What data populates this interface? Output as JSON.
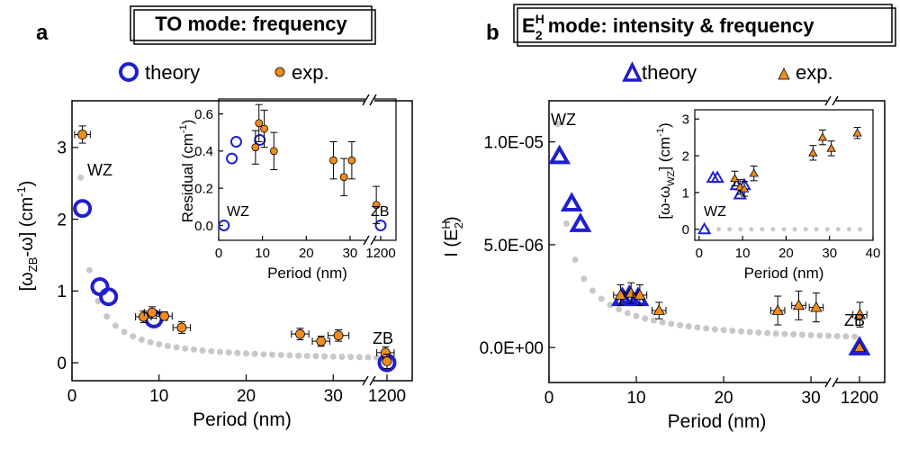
{
  "panels": [
    {
      "panel_label": "a",
      "title_main": "TO mode: frequency",
      "title_sub": "",
      "title_super": "",
      "title_rest": "",
      "legend": {
        "theory": "theory",
        "exp": "exp."
      },
      "region_labels": [
        "WZ",
        "ZB"
      ],
      "inset_region_labels": [
        "WZ",
        "ZB"
      ],
      "chart_data": {
        "type": "scatter",
        "xlabel": "Period (nm)",
        "ylabel": "[ωZB-ω] (cm-1)",
        "xlim": [
          0,
          37
        ],
        "x_break": {
          "after": 35,
          "label": "1200"
        },
        "ylim": [
          -0.25,
          3.65
        ],
        "x_ticks": [
          0,
          10,
          20,
          30
        ],
        "y_ticks": [
          0,
          1,
          2,
          3
        ],
        "y_ticklabels": [
          "0",
          "1",
          "2",
          "3"
        ],
        "series": [
          {
            "name": "theory",
            "marker": "open-circle",
            "color": "#1f1fd0",
            "points": [
              [
                1.2,
                2.15
              ],
              [
                3.2,
                1.06
              ],
              [
                4.2,
                0.92
              ],
              [
                9.4,
                0.61
              ],
              [
                1200,
                0.0
              ]
            ]
          },
          {
            "name": "exp.",
            "marker": "filled-circle",
            "color": "#f08c1e",
            "points": [
              {
                "x": 1.2,
                "y": 3.18,
                "xerr": 0.9,
                "yerr": 0.12
              },
              {
                "x": 8.2,
                "y": 0.64,
                "xerr": 0.9,
                "yerr": 0.08
              },
              {
                "x": 9.2,
                "y": 0.7,
                "xerr": 0.9,
                "yerr": 0.08
              },
              {
                "x": 10.6,
                "y": 0.65,
                "xerr": 0.9,
                "yerr": 0.06
              },
              {
                "x": 12.6,
                "y": 0.49,
                "xerr": 1.0,
                "yerr": 0.08
              },
              {
                "x": 26.2,
                "y": 0.4,
                "xerr": 1.0,
                "yerr": 0.08
              },
              {
                "x": 28.6,
                "y": 0.3,
                "xerr": 1.0,
                "yerr": 0.07
              },
              {
                "x": 30.6,
                "y": 0.38,
                "xerr": 1.2,
                "yerr": 0.08
              },
              {
                "x": 36.0,
                "y": 0.14,
                "xerr": 1.0,
                "yerr": 0.08
              },
              {
                "x": 1200,
                "y": 0.02,
                "xerr": 0,
                "yerr": 0.1
              }
            ]
          }
        ],
        "guide_curve": {
          "color": "#c8c8c8",
          "style": "dotted"
        }
      },
      "inset": {
        "chart_data": {
          "type": "scatter",
          "xlabel": "Period (nm)",
          "ylabel": "Residual (cm-1)",
          "xlim": [
            0,
            37
          ],
          "x_break": {
            "after": 35,
            "label": "1200"
          },
          "ylim": [
            -0.08,
            0.68
          ],
          "x_ticks": [
            0,
            10,
            20,
            30
          ],
          "y_ticks": [
            0.0,
            0.2,
            0.4,
            0.6
          ],
          "y_ticklabels": [
            "0.0",
            "0.2",
            "0.4",
            "0.6"
          ],
          "series": [
            {
              "name": "theory",
              "marker": "open-circle",
              "color": "#1f1fd0",
              "points": [
                [
                  1.2,
                  0.0
                ],
                [
                  3.0,
                  0.36
                ],
                [
                  4.0,
                  0.45
                ],
                [
                  9.4,
                  0.46
                ],
                [
                  1200,
                  0.0
                ]
              ]
            },
            {
              "name": "exp.",
              "marker": "filled-circle",
              "color": "#f08c1e",
              "points": [
                {
                  "x": 8.4,
                  "y": 0.42,
                  "yerr": 0.09
                },
                {
                  "x": 9.2,
                  "y": 0.55,
                  "yerr": 0.1
                },
                {
                  "x": 10.4,
                  "y": 0.52,
                  "yerr": 0.1
                },
                {
                  "x": 12.6,
                  "y": 0.4,
                  "yerr": 0.1
                },
                {
                  "x": 26.2,
                  "y": 0.35,
                  "yerr": 0.1
                },
                {
                  "x": 28.6,
                  "y": 0.26,
                  "yerr": 0.1
                },
                {
                  "x": 30.4,
                  "y": 0.35,
                  "yerr": 0.1
                },
                {
                  "x": 36.0,
                  "y": 0.11,
                  "yerr": 0.1
                }
              ]
            }
          ]
        }
      }
    },
    {
      "panel_label": "b",
      "title_main": "E",
      "title_sub": "2",
      "title_super": "H",
      "title_rest": " mode: intensity & frequency",
      "legend": {
        "theory": "theory",
        "exp": "exp."
      },
      "region_labels": [
        "WZ",
        "ZB"
      ],
      "inset_region_labels": [
        "WZ"
      ],
      "chart_data": {
        "type": "scatter",
        "xlabel": "Period (nm)",
        "ylabel": "I (E2H)",
        "xlim": [
          0,
          37
        ],
        "x_break": {
          "after": 35,
          "label": "1200"
        },
        "ylim": [
          -1.7e-06,
          1.2e-05
        ],
        "x_ticks": [
          0,
          10,
          20,
          30
        ],
        "y_ticks": [
          0,
          5e-06,
          1e-05
        ],
        "y_ticklabels": [
          "0.0E+00",
          "5.0E-06",
          "1.0E-05"
        ],
        "series": [
          {
            "name": "theory",
            "marker": "open-triangle",
            "color": "#1f1fd0",
            "points": [
              [
                1.2,
                9.3e-06
              ],
              [
                2.6,
                7e-06
              ],
              [
                3.6,
                6e-06
              ],
              [
                8.4,
                2.4e-06
              ],
              [
                9.2,
                2.5e-06
              ],
              [
                10.2,
                2.4e-06
              ],
              [
                1200,
                0.0
              ]
            ]
          },
          {
            "name": "exp.",
            "marker": "filled-triangle",
            "color": "#f08c1e",
            "points": [
              {
                "x": 8.2,
                "y": 2.55e-06,
                "xerr": 0.8,
                "yerr": 5e-07
              },
              {
                "x": 9.4,
                "y": 2.65e-06,
                "xerr": 0.8,
                "yerr": 5e-07
              },
              {
                "x": 10.4,
                "y": 2.55e-06,
                "xerr": 0.8,
                "yerr": 5e-07
              },
              {
                "x": 12.6,
                "y": 1.8e-06,
                "xerr": 0.8,
                "yerr": 4e-07
              },
              {
                "x": 26.2,
                "y": 1.8e-06,
                "xerr": 0.8,
                "yerr": 7e-07
              },
              {
                "x": 28.6,
                "y": 2.05e-06,
                "xerr": 0.8,
                "yerr": 7e-07
              },
              {
                "x": 30.6,
                "y": 1.95e-06,
                "xerr": 0.8,
                "yerr": 7e-07
              },
              {
                "x": 35.6,
                "y": 1.6e-06,
                "xerr": 0.8,
                "yerr": 6e-07
              },
              {
                "x": 1200,
                "y": 0.0,
                "xerr": 0,
                "yerr": 0
              }
            ]
          }
        ],
        "guide_curve": {
          "color": "#c8c8c8",
          "style": "dotted"
        }
      },
      "inset": {
        "chart_data": {
          "type": "scatter",
          "xlabel": "Period (nm)",
          "ylabel": "[ω-ωWZ] (cm-1)",
          "xlim": [
            -1,
            40
          ],
          "ylim": [
            -0.3,
            3.25
          ],
          "x_ticks": [
            0,
            10,
            20,
            30,
            40
          ],
          "y_ticks": [
            0,
            1,
            2,
            3
          ],
          "y_ticklabels": [
            "0",
            "1",
            "2",
            "3"
          ],
          "series": [
            {
              "name": "theory",
              "marker": "open-triangle",
              "color": "#1f1fd0",
              "points": [
                [
                  1.2,
                  0.0
                ],
                [
                  3.2,
                  1.4
                ],
                [
                  4.2,
                  1.4
                ],
                [
                  8.6,
                  1.2
                ],
                [
                  9.4,
                  0.95
                ],
                [
                  10.4,
                  1.2
                ]
              ]
            },
            {
              "name": "exp.",
              "marker": "filled-triangle",
              "color": "#f08c1e",
              "points": [
                {
                  "x": 8.2,
                  "y": 1.38,
                  "yerr": 0.2
                },
                {
                  "x": 9.4,
                  "y": 1.15,
                  "yerr": 0.2
                },
                {
                  "x": 10.4,
                  "y": 1.1,
                  "yerr": 0.2
                },
                {
                  "x": 12.6,
                  "y": 1.52,
                  "yerr": 0.2
                },
                {
                  "x": 26.2,
                  "y": 2.08,
                  "yerr": 0.2
                },
                {
                  "x": 28.4,
                  "y": 2.5,
                  "yerr": 0.2
                },
                {
                  "x": 30.4,
                  "y": 2.2,
                  "yerr": 0.2
                },
                {
                  "x": 36.4,
                  "y": 2.62,
                  "yerr": 0.15
                }
              ]
            }
          ],
          "guide_curve": {
            "color": "#c8c8c8",
            "style": "dotted",
            "value": 0
          }
        }
      }
    }
  ]
}
